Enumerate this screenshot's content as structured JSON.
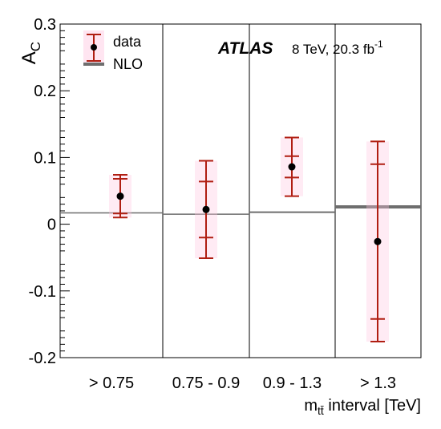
{
  "chart_data": {
    "type": "scatter",
    "categories": [
      "> 0.75",
      "0.75 - 0.9",
      "0.9 - 1.3",
      "> 1.3"
    ],
    "ylabel": "A",
    "ylabel_sub": "C",
    "xlabel": "m",
    "xlabel_sub": "tt̄",
    "xlabel_rest": " interval [TeV]",
    "ylim": [
      -0.2,
      0.3
    ],
    "yticks": [
      "-0.2",
      "-0.1",
      "0",
      "0.1",
      "0.2",
      "0.3"
    ],
    "experiment": "ATLAS",
    "energy_lumi": "8 TeV, 20.3 fb",
    "lumi_sup": "-1",
    "legend": {
      "placement": "top-left",
      "data": "data",
      "nlo": "NLO"
    },
    "series": [
      {
        "name": "data",
        "values": [
          0.042,
          0.022,
          0.086,
          -0.026
        ],
        "stat_err_up": [
          0.026,
          0.042,
          0.016,
          0.116
        ],
        "stat_err_down": [
          0.026,
          0.042,
          0.016,
          0.116
        ],
        "total_err_up": [
          0.032,
          0.073,
          0.044,
          0.15
        ],
        "total_err_down": [
          0.032,
          0.073,
          0.044,
          0.15
        ]
      },
      {
        "name": "NLO",
        "values": [
          0.017,
          0.015,
          0.018,
          0.026
        ]
      }
    ],
    "colors": {
      "data_error": "#b01e12",
      "data_band": "#ffc6e0",
      "nlo": "#6e6e6e",
      "marker": "#000000"
    }
  }
}
